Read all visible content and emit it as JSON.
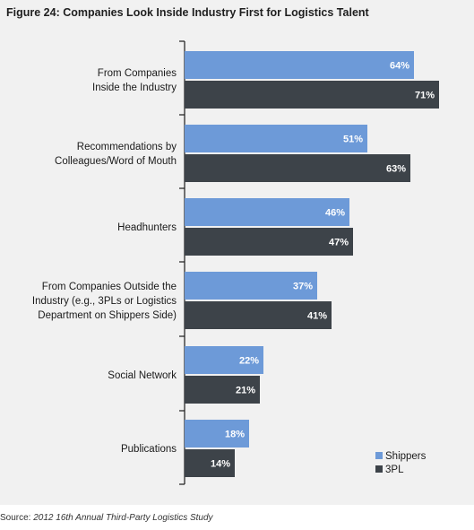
{
  "title": "Figure 24: Companies Look Inside Industry First for Logistics Talent",
  "source": {
    "prefix": "Source:",
    "title": "2012 16th Annual Third-Party Logistics Study"
  },
  "colors": {
    "shippers": "#6d9ad8",
    "3pl": "#3d4349",
    "panel": "#f1f1f1",
    "axis": "#1a1a1a"
  },
  "chart_data": {
    "type": "bar",
    "orientation": "horizontal",
    "categories": [
      [
        "From Companies",
        "Inside the Industry"
      ],
      [
        "Recommendations by",
        "Colleagues/Word of Mouth"
      ],
      [
        "Headhunters"
      ],
      [
        "From Companies Outside the",
        "Industry (e.g., 3PLs or Logistics",
        "Department on Shippers Side)"
      ],
      [
        "Social Network"
      ],
      [
        "Publications"
      ]
    ],
    "series": [
      {
        "name": "Shippers",
        "values": [
          64,
          51,
          46,
          37,
          22,
          18
        ],
        "labels": [
          "64%",
          "51%",
          "46%",
          "37%",
          "22%",
          "18%"
        ]
      },
      {
        "name": "3PL",
        "values": [
          71,
          63,
          47,
          41,
          21,
          14
        ],
        "labels": [
          "71%",
          "63%",
          "47%",
          "41%",
          "21%",
          "14%"
        ]
      }
    ],
    "xlim": [
      0,
      100
    ],
    "grid": false,
    "legend_position": "bottom-right",
    "title": "Figure 24: Companies Look Inside Industry First for Logistics Talent",
    "xlabel": "",
    "ylabel": ""
  }
}
